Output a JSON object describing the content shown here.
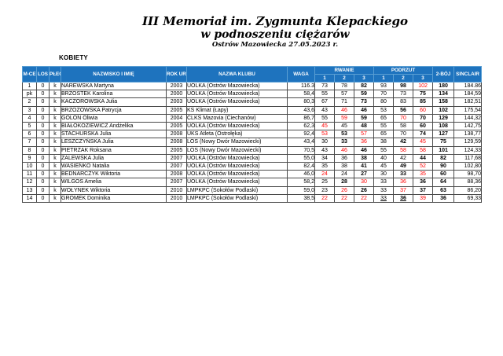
{
  "title": {
    "line1": "III Memoriał im. Zygmunta Klepackiego",
    "line2": "w podnoszeniu ciężarów",
    "line3": "Ostrów Mazowiecka 27.05.2023 r."
  },
  "section_label": "KOBIETY",
  "colors": {
    "header_bg": "#1e73be",
    "fail_text": "#ff0000",
    "fail_highlight_bg": "#f7a8a8",
    "total_col_bg": "#ffff99",
    "sinclair_col_bg": "#bdd7ee"
  },
  "table": {
    "headers": {
      "mce": "M-CE",
      "los": "LOS",
      "plec": "PŁEĆ",
      "name": "NAZWISKO I IMIĘ",
      "year": "ROK UR.",
      "club": "NAZWA KLUBU",
      "waga": "WAGA",
      "snatch": "RWANIE",
      "cleanjerk": "PODRZUT",
      "attempts": [
        "1",
        "2",
        "3"
      ],
      "total": "2-BÓJ",
      "sinclair": "SINCLAIR"
    },
    "rows": [
      {
        "mce": "1",
        "los": "0",
        "plec": "k",
        "name": "NAREWSKA Martyna",
        "year": "2003",
        "club": "UOLKA (Ostrów Mazowiecka)",
        "waga": "116.3",
        "sn": [
          {
            "v": "73",
            "s": "o"
          },
          {
            "v": "78",
            "s": "o"
          },
          {
            "v": "82",
            "s": "b"
          }
        ],
        "cj": [
          {
            "v": "93",
            "s": "o"
          },
          {
            "v": "98",
            "s": "b"
          },
          {
            "v": "102",
            "s": "fh"
          }
        ],
        "total": "180",
        "sinclair": "184.86"
      },
      {
        "mce": "pk",
        "los": "0",
        "plec": "k",
        "name": "BRZOSTEK Karolina",
        "year": "2000",
        "club": "UOLKA (Ostrów Mazowiecka)",
        "waga": "58,4",
        "sn": [
          {
            "v": "55",
            "s": "o"
          },
          {
            "v": "57",
            "s": "o"
          },
          {
            "v": "59",
            "s": "b"
          }
        ],
        "cj": [
          {
            "v": "70",
            "s": "o"
          },
          {
            "v": "73",
            "s": "o"
          },
          {
            "v": "75",
            "s": "b"
          }
        ],
        "total": "134",
        "sinclair": "184,59"
      },
      {
        "mce": "2",
        "los": "0",
        "plec": "k",
        "name": "KACZOROWSKA Julia",
        "year": "2003",
        "club": "UOLKA (Ostrów Mazowiecka)",
        "waga": "80,3",
        "sn": [
          {
            "v": "67",
            "s": "o"
          },
          {
            "v": "71",
            "s": "o"
          },
          {
            "v": "73",
            "s": "b"
          }
        ],
        "cj": [
          {
            "v": "80",
            "s": "o"
          },
          {
            "v": "83",
            "s": "o"
          },
          {
            "v": "85",
            "s": "b"
          }
        ],
        "total": "158",
        "sinclair": "182,51"
      },
      {
        "mce": "3",
        "los": "0",
        "plec": "k",
        "name": "BRZOZOWSKA Patrycja",
        "year": "2005",
        "club": "KS Klimat (Łapy)",
        "waga": "43,6",
        "sn": [
          {
            "v": "43",
            "s": "o"
          },
          {
            "v": "46",
            "s": "f"
          },
          {
            "v": "46",
            "s": "b"
          }
        ],
        "cj": [
          {
            "v": "53",
            "s": "o"
          },
          {
            "v": "56",
            "s": "b"
          },
          {
            "v": "60",
            "s": "f"
          }
        ],
        "total": "102",
        "sinclair": "175,54"
      },
      {
        "mce": "4",
        "los": "0",
        "plec": "k",
        "name": "GOLON Oliwia",
        "year": "2004",
        "club": "CLKS Mazovia (Ciechanów)",
        "waga": "86,7",
        "sn": [
          {
            "v": "55",
            "s": "o"
          },
          {
            "v": "59",
            "s": "f"
          },
          {
            "v": "59",
            "s": "b"
          }
        ],
        "cj": [
          {
            "v": "65",
            "s": "o"
          },
          {
            "v": "70",
            "s": "f"
          },
          {
            "v": "70",
            "s": "b"
          }
        ],
        "total": "129",
        "sinclair": "144,32"
      },
      {
        "mce": "5",
        "los": "0",
        "plec": "k",
        "name": "BIAŁOKOZIEWICZ Andżelika",
        "year": "2005",
        "club": "UOLKA (Ostrów Mazowiecka)",
        "waga": "62,3",
        "sn": [
          {
            "v": "45",
            "s": "f"
          },
          {
            "v": "45",
            "s": "o"
          },
          {
            "v": "48",
            "s": "b"
          }
        ],
        "cj": [
          {
            "v": "55",
            "s": "o"
          },
          {
            "v": "58",
            "s": "o"
          },
          {
            "v": "60",
            "s": "b"
          }
        ],
        "total": "108",
        "sinclair": "142,75"
      },
      {
        "mce": "6",
        "los": "0",
        "plec": "k",
        "name": "STACHURSKA Julia",
        "year": "2008",
        "club": "UKS Atleta (Ostrołęka)",
        "waga": "92,4",
        "sn": [
          {
            "v": "53",
            "s": "f"
          },
          {
            "v": "53",
            "s": "b"
          },
          {
            "v": "57",
            "s": "f"
          }
        ],
        "cj": [
          {
            "v": "65",
            "s": "o"
          },
          {
            "v": "70",
            "s": "o"
          },
          {
            "v": "74",
            "s": "b"
          }
        ],
        "total": "127",
        "sinclair": "138,77"
      },
      {
        "mce": "7",
        "los": "0",
        "plec": "k",
        "name": "LESZCZYŃSKA Julia",
        "year": "2008",
        "club": "LOS (Nowy Dwór Mazowiecki)",
        "waga": "43,4",
        "sn": [
          {
            "v": "30",
            "s": "o"
          },
          {
            "v": "33",
            "s": "b"
          },
          {
            "v": "36",
            "s": "f"
          }
        ],
        "cj": [
          {
            "v": "38",
            "s": "o"
          },
          {
            "v": "42",
            "s": "b"
          },
          {
            "v": "45",
            "s": "f"
          }
        ],
        "total": "75",
        "sinclair": "129,59"
      },
      {
        "mce": "8",
        "los": "0",
        "plec": "k",
        "name": "PIETRZAK Roksana",
        "year": "2005",
        "club": "LOS (Nowy Dwór Mazowiecki)",
        "waga": "70,5",
        "sn": [
          {
            "v": "43",
            "s": "o"
          },
          {
            "v": "46",
            "s": "f"
          },
          {
            "v": "46",
            "s": "b"
          }
        ],
        "cj": [
          {
            "v": "55",
            "s": "o"
          },
          {
            "v": "58",
            "s": "f"
          },
          {
            "v": "58",
            "s": "f"
          }
        ],
        "total": "101",
        "sinclair": "124,33"
      },
      {
        "mce": "9",
        "los": "0",
        "plec": "k",
        "name": "ZALEWSKA Julia",
        "year": "2007",
        "club": "UOLKA (Ostrów Mazowiecka)",
        "waga": "55,0",
        "sn": [
          {
            "v": "34",
            "s": "o"
          },
          {
            "v": "36",
            "s": "o"
          },
          {
            "v": "38",
            "s": "b"
          }
        ],
        "cj": [
          {
            "v": "40",
            "s": "o"
          },
          {
            "v": "42",
            "s": "o"
          },
          {
            "v": "44",
            "s": "b"
          }
        ],
        "total": "82",
        "sinclair": "117,68"
      },
      {
        "mce": "10",
        "los": "0",
        "plec": "k",
        "name": "WASIEŃKO Natalia",
        "year": "2007",
        "club": "UOLKA (Ostrów Mazowiecka)",
        "waga": "82,4",
        "sn": [
          {
            "v": "35",
            "s": "o"
          },
          {
            "v": "38",
            "s": "o"
          },
          {
            "v": "41",
            "s": "b"
          }
        ],
        "cj": [
          {
            "v": "45",
            "s": "o"
          },
          {
            "v": "49",
            "s": "b"
          },
          {
            "v": "52",
            "s": "f"
          }
        ],
        "total": "90",
        "sinclair": "102,80"
      },
      {
        "mce": "11",
        "los": "0",
        "plec": "k",
        "name": "BEDNARCZYK Wiktoria",
        "year": "2008",
        "club": "UOLKA (Ostrów Mazowiecka)",
        "waga": "46,0",
        "sn": [
          {
            "v": "24",
            "s": "f"
          },
          {
            "v": "24",
            "s": "o"
          },
          {
            "v": "27",
            "s": "b"
          }
        ],
        "cj": [
          {
            "v": "30",
            "s": "o"
          },
          {
            "v": "33",
            "s": "b"
          },
          {
            "v": "35",
            "s": "f"
          }
        ],
        "total": "60",
        "sinclair": "98,70"
      },
      {
        "mce": "12",
        "los": "0",
        "plec": "k",
        "name": "WILGOS Amelia",
        "year": "2007",
        "club": "UOLKA (Ostrów Mazowiecka)",
        "waga": "58,2",
        "sn": [
          {
            "v": "25",
            "s": "o"
          },
          {
            "v": "28",
            "s": "b"
          },
          {
            "v": "30",
            "s": "f"
          }
        ],
        "cj": [
          {
            "v": "33",
            "s": "o"
          },
          {
            "v": "36",
            "s": "f"
          },
          {
            "v": "36",
            "s": "b"
          }
        ],
        "total": "64",
        "sinclair": "88,36"
      },
      {
        "mce": "13",
        "los": "0",
        "plec": "k",
        "name": "WOŁYNEK Wiktoria",
        "year": "2010",
        "club": "LMPKPC (Sokołów Podlaski)",
        "waga": "59,0",
        "sn": [
          {
            "v": "23",
            "s": "o"
          },
          {
            "v": "26",
            "s": "f"
          },
          {
            "v": "26",
            "s": "b"
          }
        ],
        "cj": [
          {
            "v": "33",
            "s": "o"
          },
          {
            "v": "37",
            "s": "f"
          },
          {
            "v": "37",
            "s": "b"
          }
        ],
        "total": "63",
        "sinclair": "86,20"
      },
      {
        "mce": "14",
        "los": "0",
        "plec": "k",
        "name": "GROMEK Dominika",
        "year": "2010",
        "club": "LMPKPC (Sokołów Podlaski)",
        "waga": "38,5",
        "sn": [
          {
            "v": "22",
            "s": "f"
          },
          {
            "v": "22",
            "s": "f"
          },
          {
            "v": "22",
            "s": "f"
          }
        ],
        "cj": [
          {
            "v": "33",
            "s": "u"
          },
          {
            "v": "36",
            "s": "ub"
          },
          {
            "v": "39",
            "s": "f"
          }
        ],
        "total": "36",
        "sinclair": "69,33"
      }
    ]
  }
}
